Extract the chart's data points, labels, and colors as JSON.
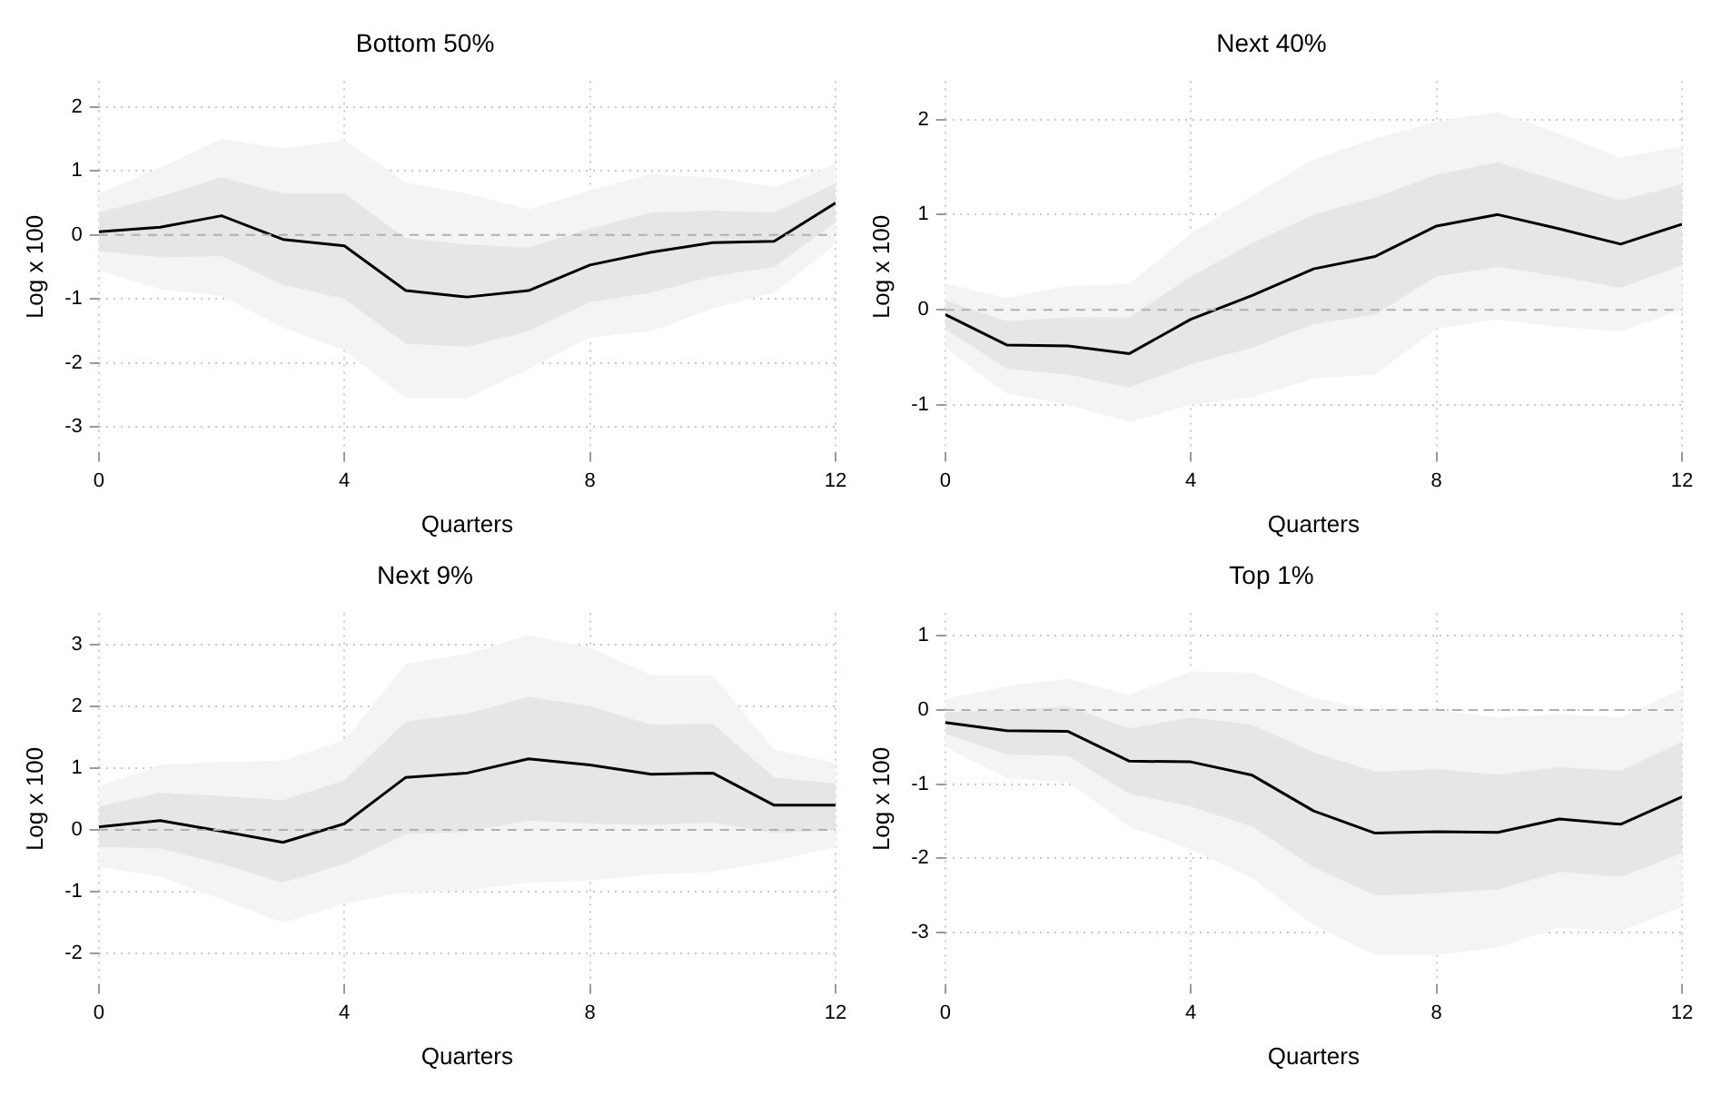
{
  "chart_data": [
    {
      "type": "line",
      "title": "Bottom 50%",
      "xlabel": "Quarters",
      "ylabel": "Log x 100",
      "x": [
        0,
        1,
        2,
        3,
        4,
        5,
        6,
        7,
        8,
        9,
        10,
        11,
        12
      ],
      "xlim": [
        0,
        12
      ],
      "xticks": [
        0,
        4,
        8,
        12
      ],
      "ylim": [
        -3.4,
        2.4
      ],
      "yticks": [
        -3,
        -2,
        -1,
        0,
        1,
        2
      ],
      "grid": true,
      "legend": false,
      "marker": "none",
      "line_style": "solid",
      "ref_lines": [
        {
          "axis": "y",
          "value": 0,
          "color": "#b0b0b0",
          "line_style": "dashed"
        }
      ],
      "series": [
        {
          "color": "#f4f4f4",
          "values": [
            null,
            null,
            null,
            null,
            null,
            null,
            null,
            null,
            null,
            null,
            null,
            null,
            null
          ],
          "lower": [
            -0.55,
            -0.85,
            -0.95,
            -1.45,
            -1.8,
            -2.55,
            -2.55,
            -2.1,
            -1.6,
            -1.5,
            -1.15,
            -0.9,
            -0.15
          ],
          "upper": [
            0.65,
            1.05,
            1.5,
            1.35,
            1.48,
            0.82,
            0.65,
            0.4,
            0.7,
            0.95,
            0.9,
            0.75,
            1.1
          ]
        },
        {
          "color": "#e6e6e6",
          "values": [
            null,
            null,
            null,
            null,
            null,
            null,
            null,
            null,
            null,
            null,
            null,
            null,
            null
          ],
          "lower": [
            -0.25,
            -0.35,
            -0.33,
            -0.78,
            -1.0,
            -1.7,
            -1.75,
            -1.5,
            -1.05,
            -0.9,
            -0.65,
            -0.5,
            0.2
          ],
          "upper": [
            0.35,
            0.6,
            0.9,
            0.65,
            0.65,
            -0.05,
            -0.15,
            -0.2,
            0.1,
            0.35,
            0.38,
            0.35,
            0.8
          ]
        },
        {
          "color": "#000000",
          "values": [
            0.05,
            0.12,
            0.3,
            -0.07,
            -0.17,
            -0.87,
            -0.97,
            -0.87,
            -0.47,
            -0.27,
            -0.12,
            -0.1,
            0.5
          ]
        }
      ]
    },
    {
      "type": "line",
      "title": "Next 40%",
      "xlabel": "Quarters",
      "ylabel": "Log x 100",
      "x": [
        0,
        1,
        2,
        3,
        4,
        5,
        6,
        7,
        8,
        9,
        10,
        11,
        12
      ],
      "xlim": [
        0,
        12
      ],
      "xticks": [
        0,
        4,
        8,
        12
      ],
      "ylim": [
        -1.5,
        2.4
      ],
      "yticks": [
        -1,
        0,
        1,
        2
      ],
      "grid": true,
      "legend": false,
      "marker": "none",
      "line_style": "solid",
      "ref_lines": [
        {
          "axis": "y",
          "value": 0,
          "color": "#b0b0b0",
          "line_style": "dashed"
        }
      ],
      "series": [
        {
          "color": "#f4f4f4",
          "values": [
            null,
            null,
            null,
            null,
            null,
            null,
            null,
            null,
            null,
            null,
            null,
            null,
            null
          ],
          "lower": [
            -0.4,
            -0.88,
            -1.0,
            -1.18,
            -1.0,
            -0.92,
            -0.72,
            -0.68,
            -0.2,
            -0.1,
            -0.18,
            -0.23,
            0.0
          ],
          "upper": [
            0.28,
            0.12,
            0.25,
            0.27,
            0.8,
            1.2,
            1.58,
            1.8,
            1.98,
            2.08,
            1.85,
            1.6,
            1.72
          ]
        },
        {
          "color": "#e6e6e6",
          "values": [
            null,
            null,
            null,
            null,
            null,
            null,
            null,
            null,
            null,
            null,
            null,
            null,
            null
          ],
          "lower": [
            -0.2,
            -0.62,
            -0.68,
            -0.82,
            -0.57,
            -0.4,
            -0.15,
            -0.05,
            0.35,
            0.45,
            0.35,
            0.23,
            0.47
          ],
          "upper": [
            0.1,
            -0.12,
            -0.08,
            -0.08,
            0.35,
            0.7,
            1.0,
            1.18,
            1.42,
            1.55,
            1.35,
            1.15,
            1.32
          ]
        },
        {
          "color": "#000000",
          "values": [
            -0.05,
            -0.37,
            -0.38,
            -0.46,
            -0.1,
            0.15,
            0.43,
            0.56,
            0.88,
            1.0,
            0.85,
            0.69,
            0.9
          ]
        }
      ]
    },
    {
      "type": "line",
      "title": "Next 9%",
      "xlabel": "Quarters",
      "ylabel": "Log x 100",
      "x": [
        0,
        1,
        2,
        3,
        4,
        5,
        6,
        7,
        8,
        9,
        10,
        11,
        12
      ],
      "xlim": [
        0,
        12
      ],
      "xticks": [
        0,
        4,
        8,
        12
      ],
      "ylim": [
        -2.5,
        3.5
      ],
      "yticks": [
        -2,
        -1,
        0,
        1,
        2,
        3
      ],
      "grid": true,
      "legend": false,
      "marker": "none",
      "line_style": "solid",
      "ref_lines": [
        {
          "axis": "y",
          "value": 0,
          "color": "#b0b0b0",
          "line_style": "dashed"
        }
      ],
      "series": [
        {
          "color": "#f4f4f4",
          "values": [
            null,
            null,
            null,
            null,
            null,
            null,
            null,
            null,
            null,
            null,
            null,
            null,
            null
          ],
          "lower": [
            -0.6,
            -0.75,
            -1.12,
            -1.5,
            -1.2,
            -1.0,
            -0.98,
            -0.85,
            -0.82,
            -0.72,
            -0.68,
            -0.5,
            -0.28
          ],
          "upper": [
            0.7,
            1.05,
            1.1,
            1.12,
            1.45,
            2.68,
            2.85,
            3.15,
            2.95,
            2.5,
            2.5,
            1.3,
            1.08
          ]
        },
        {
          "color": "#e6e6e6",
          "values": [
            null,
            null,
            null,
            null,
            null,
            null,
            null,
            null,
            null,
            null,
            null,
            null,
            null
          ],
          "lower": [
            -0.27,
            -0.3,
            -0.55,
            -0.85,
            -0.55,
            -0.07,
            -0.03,
            0.15,
            0.1,
            0.08,
            0.12,
            -0.05,
            0.0
          ],
          "upper": [
            0.38,
            0.6,
            0.55,
            0.48,
            0.8,
            1.75,
            1.88,
            2.15,
            2.0,
            1.7,
            1.72,
            0.85,
            0.75
          ]
        },
        {
          "color": "#000000",
          "values": [
            0.05,
            0.15,
            -0.02,
            -0.2,
            0.1,
            0.85,
            0.92,
            1.15,
            1.05,
            0.9,
            0.92,
            0.4,
            0.4
          ]
        }
      ]
    },
    {
      "type": "line",
      "title": "Top 1%",
      "xlabel": "Quarters",
      "ylabel": "Log x 100",
      "x": [
        0,
        1,
        2,
        3,
        4,
        5,
        6,
        7,
        8,
        9,
        10,
        11,
        12
      ],
      "xlim": [
        0,
        12
      ],
      "xticks": [
        0,
        4,
        8,
        12
      ],
      "ylim": [
        -3.7,
        1.3
      ],
      "yticks": [
        -3,
        -2,
        -1,
        0,
        1
      ],
      "grid": true,
      "legend": false,
      "marker": "none",
      "line_style": "solid",
      "ref_lines": [
        {
          "axis": "y",
          "value": 0,
          "color": "#b0b0b0",
          "line_style": "dashed"
        }
      ],
      "series": [
        {
          "color": "#f4f4f4",
          "values": [
            null,
            null,
            null,
            null,
            null,
            null,
            null,
            null,
            null,
            null,
            null,
            null,
            null
          ],
          "lower": [
            -0.5,
            -0.92,
            -0.97,
            -1.57,
            -1.88,
            -2.27,
            -2.9,
            -3.3,
            -3.3,
            -3.2,
            -2.93,
            -2.98,
            -2.65
          ],
          "upper": [
            0.15,
            0.32,
            0.42,
            0.2,
            0.52,
            0.5,
            0.16,
            0.0,
            0.0,
            -0.1,
            -0.06,
            -0.1,
            0.28
          ]
        },
        {
          "color": "#e6e6e6",
          "values": [
            null,
            null,
            null,
            null,
            null,
            null,
            null,
            null,
            null,
            null,
            null,
            null,
            null
          ],
          "lower": [
            -0.32,
            -0.6,
            -0.62,
            -1.13,
            -1.3,
            -1.57,
            -2.12,
            -2.5,
            -2.47,
            -2.42,
            -2.18,
            -2.25,
            -1.93
          ],
          "upper": [
            -0.03,
            0.0,
            0.05,
            -0.25,
            -0.1,
            -0.2,
            -0.57,
            -0.83,
            -0.8,
            -0.87,
            -0.77,
            -0.82,
            -0.43
          ]
        },
        {
          "color": "#000000",
          "values": [
            -0.17,
            -0.28,
            -0.29,
            -0.69,
            -0.7,
            -0.88,
            -1.36,
            -1.66,
            -1.64,
            -1.65,
            -1.47,
            -1.54,
            -1.17
          ]
        }
      ]
    }
  ]
}
